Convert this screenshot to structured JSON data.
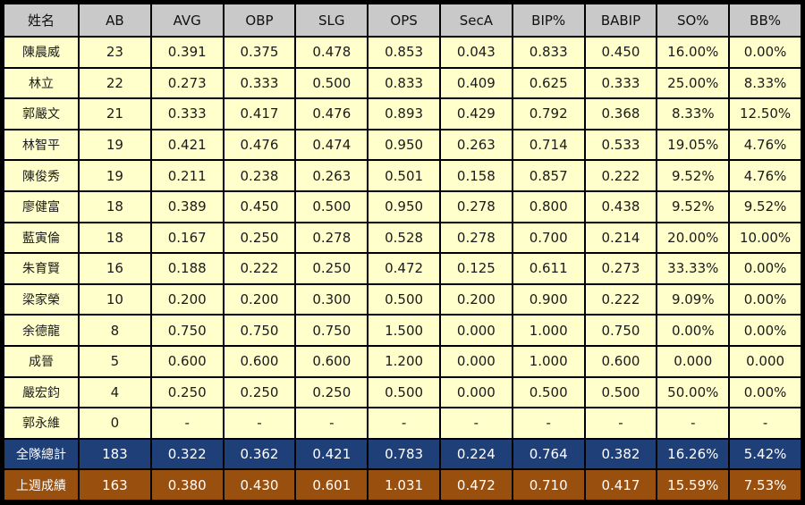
{
  "table": {
    "headers": [
      "姓名",
      "AB",
      "AVG",
      "OBP",
      "SLG",
      "OPS",
      "SecA",
      "BIP%",
      "BABIP",
      "SO%",
      "BB%"
    ],
    "rows": [
      [
        "陳晨威",
        "23",
        "0.391",
        "0.375",
        "0.478",
        "0.853",
        "0.043",
        "0.833",
        "0.450",
        "16.00%",
        "0.00%"
      ],
      [
        "林立",
        "22",
        "0.273",
        "0.333",
        "0.500",
        "0.833",
        "0.409",
        "0.625",
        "0.333",
        "25.00%",
        "8.33%"
      ],
      [
        "郭嚴文",
        "21",
        "0.333",
        "0.417",
        "0.476",
        "0.893",
        "0.429",
        "0.792",
        "0.368",
        "8.33%",
        "12.50%"
      ],
      [
        "林智平",
        "19",
        "0.421",
        "0.476",
        "0.474",
        "0.950",
        "0.263",
        "0.714",
        "0.533",
        "19.05%",
        "4.76%"
      ],
      [
        "陳俊秀",
        "19",
        "0.211",
        "0.238",
        "0.263",
        "0.501",
        "0.158",
        "0.857",
        "0.222",
        "9.52%",
        "4.76%"
      ],
      [
        "廖健富",
        "18",
        "0.389",
        "0.450",
        "0.500",
        "0.950",
        "0.278",
        "0.800",
        "0.438",
        "9.52%",
        "9.52%"
      ],
      [
        "藍寅倫",
        "18",
        "0.167",
        "0.250",
        "0.278",
        "0.528",
        "0.278",
        "0.700",
        "0.214",
        "20.00%",
        "10.00%"
      ],
      [
        "朱育賢",
        "16",
        "0.188",
        "0.222",
        "0.250",
        "0.472",
        "0.125",
        "0.611",
        "0.273",
        "33.33%",
        "0.00%"
      ],
      [
        "梁家榮",
        "10",
        "0.200",
        "0.200",
        "0.300",
        "0.500",
        "0.200",
        "0.900",
        "0.222",
        "9.09%",
        "0.00%"
      ],
      [
        "余德龍",
        "8",
        "0.750",
        "0.750",
        "0.750",
        "1.500",
        "0.000",
        "1.000",
        "0.750",
        "0.00%",
        "0.00%"
      ],
      [
        "成晉",
        "5",
        "0.600",
        "0.600",
        "0.600",
        "1.200",
        "0.000",
        "1.000",
        "0.600",
        "0.000",
        "0.000"
      ],
      [
        "嚴宏鈞",
        "4",
        "0.250",
        "0.250",
        "0.250",
        "0.500",
        "0.000",
        "0.500",
        "0.500",
        "50.00%",
        "0.00%"
      ],
      [
        "郭永維",
        "0",
        "-",
        "-",
        "-",
        "-",
        "-",
        "-",
        "-",
        "-",
        "-"
      ]
    ],
    "total": [
      "全隊總計",
      "183",
      "0.322",
      "0.362",
      "0.421",
      "0.783",
      "0.224",
      "0.764",
      "0.382",
      "16.26%",
      "5.42%"
    ],
    "last_week": [
      "上週成績",
      "163",
      "0.380",
      "0.430",
      "0.601",
      "1.031",
      "0.472",
      "0.710",
      "0.417",
      "15.59%",
      "7.53%"
    ]
  },
  "colors": {
    "header_bg": "#c9c9c9",
    "row_bg": "#ffffcc",
    "total_bg": "#1f3f78",
    "last_week_bg": "#99500f",
    "border": "#000000"
  }
}
